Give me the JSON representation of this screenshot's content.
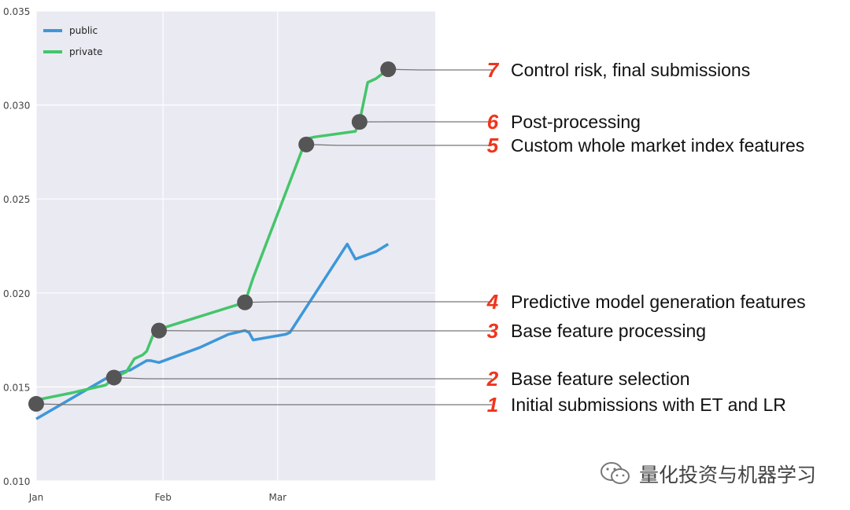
{
  "chart_data": {
    "type": "line",
    "title": "",
    "xlabel": "",
    "ylabel": "",
    "x_ticks": [
      "Jan",
      "Feb",
      "Mar"
    ],
    "y_ticks": [
      "0.010",
      "0.015",
      "0.020",
      "0.025",
      "0.030",
      "0.035"
    ],
    "ylim": [
      0.01,
      0.035
    ],
    "xlim": [
      "Jan 1",
      "Mar 1"
    ],
    "grid": true,
    "legend_position": "top-left",
    "series": [
      {
        "name": "public",
        "color": "#3d97d9",
        "points": [
          [
            "Jan 1",
            0.0133
          ],
          [
            "Jan 20",
            0.0157
          ],
          [
            "Jan 24",
            0.0159
          ],
          [
            "Jan 28",
            0.0164
          ],
          [
            "Jan 29",
            0.0164
          ],
          [
            "Jan 31",
            0.0163
          ],
          [
            "Feb 10",
            0.0171
          ],
          [
            "Feb 17",
            0.0178
          ],
          [
            "Feb 21",
            0.018
          ],
          [
            "Feb 22",
            0.0179
          ],
          [
            "Feb 23",
            0.0175
          ],
          [
            "Mar 3",
            0.0178
          ],
          [
            "Mar 4",
            0.0179
          ],
          [
            "Mar 18",
            0.0226
          ],
          [
            "Mar 20",
            0.0218
          ],
          [
            "Mar 25",
            0.0222
          ],
          [
            "Mar 28",
            0.0226
          ]
        ]
      },
      {
        "name": "private",
        "color": "#44c56b",
        "points": [
          [
            "Jan 1",
            0.0143
          ],
          [
            "Jan 10",
            0.0147
          ],
          [
            "Jan 18",
            0.0151
          ],
          [
            "Jan 20",
            0.0155
          ],
          [
            "Jan 23",
            0.0158
          ],
          [
            "Jan 25",
            0.0165
          ],
          [
            "Jan 27",
            0.0167
          ],
          [
            "Jan 28",
            0.0169
          ],
          [
            "Jan 30",
            0.018
          ],
          [
            "Feb 21",
            0.0195
          ],
          [
            "Feb 23",
            0.0208
          ],
          [
            "Mar 8",
            0.0282
          ],
          [
            "Mar 10",
            0.0283
          ],
          [
            "Mar 20",
            0.0286
          ],
          [
            "Mar 21",
            0.0291
          ],
          [
            "Mar 23",
            0.0312
          ],
          [
            "Mar 25",
            0.0314
          ],
          [
            "Mar 28",
            0.0319
          ]
        ]
      }
    ],
    "milestones": [
      {
        "number": "1",
        "label": "Initial submissions with ET and LR",
        "x": "Jan 1",
        "y": 0.0141
      },
      {
        "number": "2",
        "label": "Base feature selection",
        "x": "Jan 20",
        "y": 0.0155
      },
      {
        "number": "3",
        "label": "Base feature processing",
        "x": "Jan 31",
        "y": 0.018
      },
      {
        "number": "4",
        "label": "Predictive model generation features",
        "x": "Feb 21",
        "y": 0.0195
      },
      {
        "number": "5",
        "label": "Custom whole market index features",
        "x": "Mar 8",
        "y": 0.0279
      },
      {
        "number": "6",
        "label": "Post-processing",
        "x": "Mar 21",
        "y": 0.0291
      },
      {
        "number": "7",
        "label": "Control risk, final submissions",
        "x": "Mar 28",
        "y": 0.0319
      }
    ]
  },
  "watermark": {
    "text": "量化投资与机器学习",
    "icon": "wechat-icon"
  }
}
